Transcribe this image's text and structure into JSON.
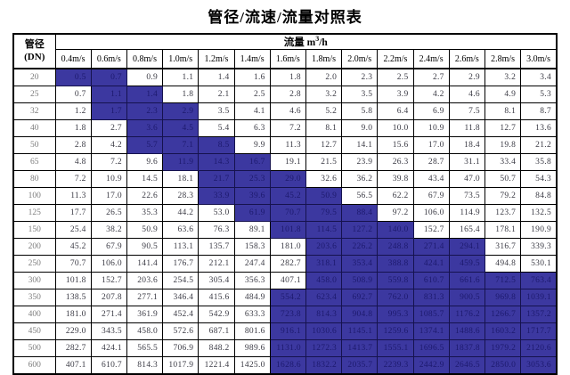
{
  "title": "管径/流速/流量对照表",
  "colors": {
    "highlight_bg": "#3c38a0",
    "highlight_text": "#1d1a6e",
    "value_text": "#3b3b45",
    "dn_text": "#7d7d7d",
    "border": "#000000"
  },
  "table": {
    "corner_header": {
      "line1": "管径",
      "line2": "(DN)"
    },
    "flow_header": {
      "label": "流量 m",
      "sup": "3",
      "suffix": "/h"
    },
    "velocity_headers": [
      "0.4m/s",
      "0.6m/s",
      "0.8m/s",
      "1.0m/s",
      "1.2m/s",
      "1.4m/s",
      "1.6m/s",
      "1.8m/s",
      "2.0m/s",
      "2.2m/s",
      "2.4m/s",
      "2.6m/s",
      "2.8m/s",
      "3.0m/s"
    ],
    "rows": [
      {
        "dn": "20",
        "values": [
          "0.5",
          "0.7",
          "0.9",
          "1.1",
          "1.4",
          "1.6",
          "1.8",
          "2.0",
          "2.3",
          "2.5",
          "2.7",
          "2.9",
          "3.2",
          "3.4"
        ],
        "hl": [
          0,
          1
        ]
      },
      {
        "dn": "25",
        "values": [
          "0.7",
          "1.1",
          "1.4",
          "1.8",
          "2.1",
          "2.5",
          "2.8",
          "3.2",
          "3.5",
          "3.9",
          "4.2",
          "4.6",
          "4.9",
          "5.3"
        ],
        "hl": [
          1,
          2
        ]
      },
      {
        "dn": "32",
        "values": [
          "1.2",
          "1.7",
          "2.3",
          "2.9",
          "3.5",
          "4.1",
          "4.6",
          "5.2",
          "5.8",
          "6.4",
          "6.9",
          "7.5",
          "8.1",
          "8.7"
        ],
        "hl": [
          1,
          3
        ]
      },
      {
        "dn": "40",
        "values": [
          "1.8",
          "2.7",
          "3.6",
          "4.5",
          "5.4",
          "6.3",
          "7.2",
          "8.1",
          "9.0",
          "10.0",
          "10.9",
          "11.8",
          "12.7",
          "13.6"
        ],
        "hl": [
          2,
          3
        ]
      },
      {
        "dn": "50",
        "values": [
          "2.8",
          "4.2",
          "5.7",
          "7.1",
          "8.5",
          "9.9",
          "11.3",
          "12.7",
          "14.1",
          "15.6",
          "17.0",
          "18.4",
          "19.8",
          "21.2"
        ],
        "hl": [
          2,
          4
        ]
      },
      {
        "dn": "65",
        "values": [
          "4.8",
          "7.2",
          "9.6",
          "11.9",
          "14.3",
          "16.7",
          "19.1",
          "21.5",
          "23.9",
          "26.3",
          "28.7",
          "31.1",
          "33.4",
          "35.8"
        ],
        "hl": [
          3,
          5
        ]
      },
      {
        "dn": "80",
        "values": [
          "7.2",
          "10.9",
          "14.5",
          "18.1",
          "21.7",
          "25.3",
          "29.0",
          "32.6",
          "36.2",
          "39.8",
          "43.4",
          "47.0",
          "50.7",
          "54.3"
        ],
        "hl": [
          4,
          6
        ]
      },
      {
        "dn": "100",
        "values": [
          "11.3",
          "17.0",
          "22.6",
          "28.3",
          "33.9",
          "39.6",
          "45.2",
          "50.9",
          "56.5",
          "62.2",
          "67.9",
          "73.5",
          "79.2",
          "84.8"
        ],
        "hl": [
          4,
          7
        ]
      },
      {
        "dn": "125",
        "values": [
          "17.7",
          "26.5",
          "35.3",
          "44.2",
          "53.0",
          "61.9",
          "70.7",
          "79.5",
          "88.4",
          "97.2",
          "106.0",
          "114.9",
          "123.7",
          "132.5"
        ],
        "hl": [
          5,
          8
        ]
      },
      {
        "dn": "150",
        "values": [
          "25.4",
          "38.2",
          "50.9",
          "63.6",
          "76.3",
          "89.1",
          "101.8",
          "114.5",
          "127.2",
          "140.0",
          "152.7",
          "165.4",
          "178.1",
          "190.9"
        ],
        "hl": [
          6,
          9
        ]
      },
      {
        "dn": "200",
        "values": [
          "45.2",
          "67.9",
          "90.5",
          "113.1",
          "135.7",
          "158.3",
          "181.0",
          "203.6",
          "226.2",
          "248.8",
          "271.4",
          "294.1",
          "316.7",
          "339.3"
        ],
        "hl": [
          7,
          11
        ]
      },
      {
        "dn": "250",
        "values": [
          "70.7",
          "106.0",
          "141.4",
          "176.7",
          "212.1",
          "247.4",
          "282.7",
          "318.1",
          "353.4",
          "388.8",
          "424.1",
          "459.5",
          "494.8",
          "530.1"
        ],
        "hl": [
          7,
          11
        ]
      },
      {
        "dn": "300",
        "values": [
          "101.8",
          "152.7",
          "203.6",
          "254.5",
          "305.4",
          "356.3",
          "407.1",
          "458.0",
          "508.9",
          "559.8",
          "610.7",
          "661.6",
          "712.5",
          "763.4"
        ],
        "hl": [
          7,
          13
        ]
      },
      {
        "dn": "350",
        "values": [
          "138.5",
          "207.8",
          "277.1",
          "346.4",
          "415.6",
          "484.9",
          "554.2",
          "623.4",
          "692.7",
          "762.0",
          "831.3",
          "900.5",
          "969.8",
          "1039.1"
        ],
        "hl": [
          6,
          13
        ]
      },
      {
        "dn": "400",
        "values": [
          "181.0",
          "271.4",
          "361.9",
          "452.4",
          "542.9",
          "633.3",
          "723.8",
          "814.3",
          "904.8",
          "995.3",
          "1085.7",
          "1176.2",
          "1266.7",
          "1357.2"
        ],
        "hl": [
          6,
          13
        ]
      },
      {
        "dn": "450",
        "values": [
          "229.0",
          "343.5",
          "458.0",
          "572.6",
          "687.1",
          "801.6",
          "916.1",
          "1030.6",
          "1145.1",
          "1259.6",
          "1374.1",
          "1488.6",
          "1603.2",
          "1717.7"
        ],
        "hl": [
          6,
          13
        ]
      },
      {
        "dn": "500",
        "values": [
          "282.7",
          "424.1",
          "565.5",
          "706.9",
          "848.2",
          "989.6",
          "1131.0",
          "1272.3",
          "1413.7",
          "1555.1",
          "1696.5",
          "1837.8",
          "1979.2",
          "2120.6"
        ],
        "hl": [
          6,
          13
        ]
      },
      {
        "dn": "600",
        "values": [
          "407.1",
          "610.7",
          "814.3",
          "1017.9",
          "1221.4",
          "1425.0",
          "1628.6",
          "1832.2",
          "2035.7",
          "2239.3",
          "2442.9",
          "2646.5",
          "2850.0",
          "3053.6"
        ],
        "hl": [
          6,
          13
        ]
      }
    ]
  }
}
